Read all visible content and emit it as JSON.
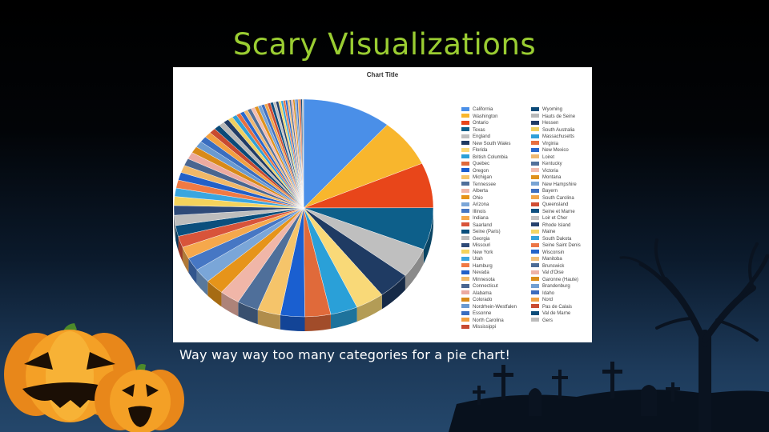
{
  "slide": {
    "title": "Scary Visualizations",
    "caption": "Way way way too many categories for a pie chart!"
  },
  "chart_data": {
    "type": "pie",
    "title": "Chart Title",
    "legend_position": "right",
    "categories": [
      "California",
      "Washington",
      "Ontario",
      "Texas",
      "England",
      "New South Wales",
      "Florida",
      "British Columbia",
      "Quebec",
      "Oregon",
      "Michigan",
      "Tennessee",
      "Alberta",
      "Ohio",
      "Arizona",
      "Illinois",
      "Indiana",
      "Saarland",
      "Seine (Paris)",
      "Georgia",
      "Missouri",
      "New York",
      "Utah",
      "Hamburg",
      "Nevada",
      "Minnesota",
      "Connecticut",
      "Alabama",
      "Colorado",
      "Nordrhein-Westfalen",
      "Essonne",
      "North Carolina",
      "Mississippi",
      "Wyoming",
      "Hauts de Seine",
      "Hessen",
      "South Australia",
      "Massachusetts",
      "Virginia",
      "New Mexico",
      "Loiret",
      "Kentucky",
      "Victoria",
      "Montana",
      "New Hampshire",
      "Bayern",
      "South Carolina",
      "Queensland",
      "Seine et Marne",
      "Loir et Cher",
      "Rhode Island",
      "Maine",
      "South Dakota",
      "Seine Saint Denis",
      "Wisconsin",
      "Manitoba",
      "Brunswick",
      "Val d'Oise",
      "Garonne (Haute)",
      "Brandenburg",
      "Idaho",
      "Nord",
      "Pas de Calais",
      "Val de Marne",
      "Gers"
    ],
    "values": [
      12.5,
      8,
      7.5,
      7,
      5,
      4.5,
      4,
      3.8,
      3.6,
      3.4,
      3.2,
      3,
      2.8,
      2.6,
      2.4,
      2.2,
      2,
      1.9,
      1.8,
      1.7,
      1.6,
      1.5,
      1.4,
      1.35,
      1.3,
      1.25,
      1.2,
      1.15,
      1.1,
      1.05,
      1,
      0.95,
      0.9,
      0.85,
      0.8,
      0.75,
      0.7,
      0.65,
      0.6,
      0.58,
      0.56,
      0.54,
      0.52,
      0.5,
      0.48,
      0.46,
      0.44,
      0.42,
      0.4,
      0.38,
      0.36,
      0.34,
      0.32,
      0.3,
      0.28,
      0.27,
      0.26,
      0.25,
      0.24,
      0.23,
      0.22,
      0.21,
      0.2,
      0.19,
      0.18
    ],
    "colors": [
      "#4a8fe8",
      "#f8b62d",
      "#e8461a",
      "#0d5f8a",
      "#bfbfbf",
      "#1f3b63",
      "#f9d978",
      "#2aa0d8",
      "#e06a3a",
      "#1a5fd0",
      "#f5c46a",
      "#4f6f9a",
      "#f0b6a8",
      "#e6941a",
      "#7aa6d8",
      "#4677c4",
      "#f5a84c",
      "#d8543a",
      "#0b4f7d",
      "#bdbdbd",
      "#2e4a78",
      "#f4d35c",
      "#3aa6e0",
      "#f07a44",
      "#2260c8",
      "#f0b868",
      "#4a6690",
      "#ecaaa0",
      "#d88a18",
      "#6a9ad0",
      "#3a6ec0",
      "#f3a040",
      "#c84a30",
      "#0a4a78",
      "#b8b8b8",
      "#203c66",
      "#efd060",
      "#30a0d8",
      "#e87040",
      "#2a68cc",
      "#efb872",
      "#52709a",
      "#f2bcb0",
      "#e0921c",
      "#78a4d4",
      "#4070c0",
      "#f2a64a",
      "#d04e34",
      "#0e5080",
      "#c2c2c2",
      "#26426e",
      "#f2d666",
      "#36a4dc",
      "#ec7646",
      "#2464c8",
      "#f0be78",
      "#4c6c96",
      "#eeb2a6",
      "#da8e1a",
      "#72a0d2",
      "#3c6cbe",
      "#f0a246",
      "#ca4c32",
      "#0c4c7a",
      "#bcbcbc"
    ]
  }
}
